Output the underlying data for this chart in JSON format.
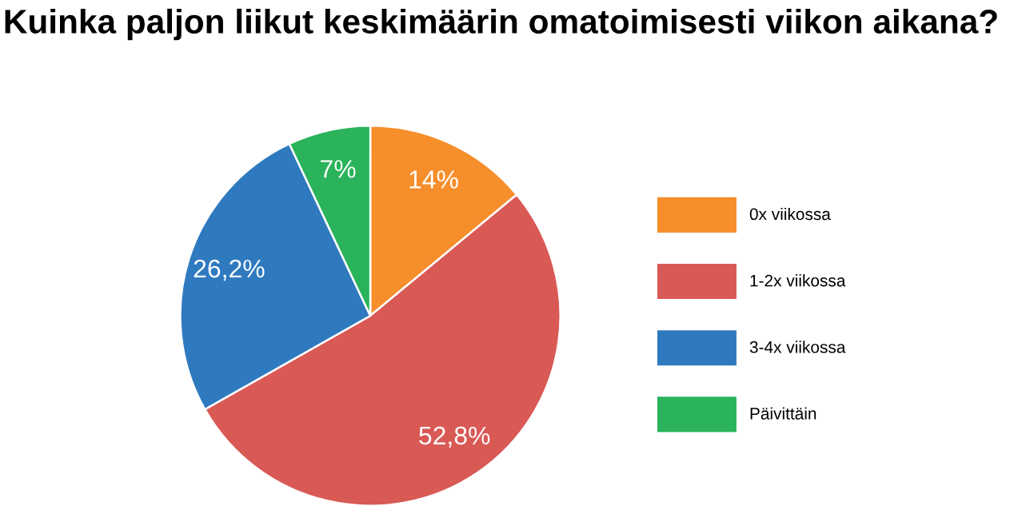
{
  "chart_data": {
    "type": "pie",
    "title": "Kuinka paljon liikut keskimäärin omatoimisesti viikon aikana?",
    "categories": [
      "0x viikossa",
      "1-2x viikossa",
      "3-4x viikossa",
      "Päivittäin"
    ],
    "values": [
      14,
      52.8,
      26.2,
      7
    ],
    "value_labels": [
      "14%",
      "52,8%",
      "26,2%",
      "7%"
    ],
    "colors": [
      "#f68e2b",
      "#d95955",
      "#2f7abf",
      "#2ab35b"
    ],
    "legend": "right"
  }
}
